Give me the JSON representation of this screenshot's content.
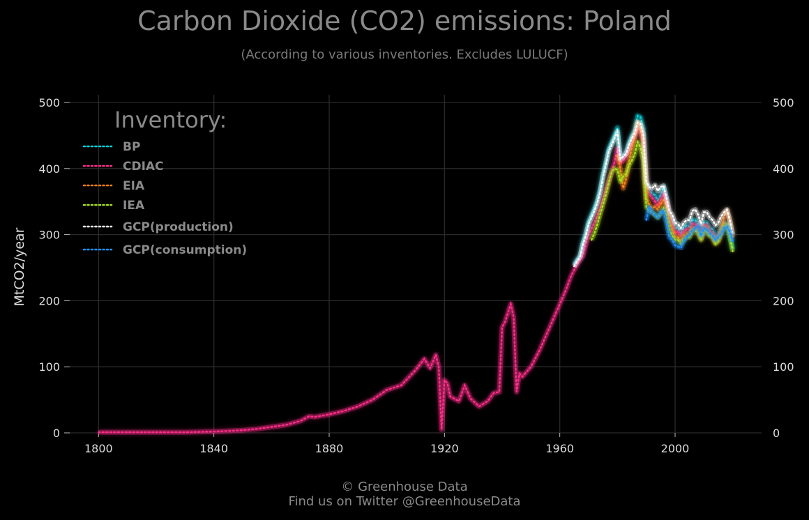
{
  "header": {
    "title": "Carbon Dioxide (CO2) emissions: Poland",
    "subtitle": "(According to various inventories. Excludes LULUCF)"
  },
  "footer": {
    "line1": "© Greenhouse Data",
    "line2": "Find us on Twitter @GreenhouseData"
  },
  "chart_data": {
    "type": "line",
    "title": "Carbon Dioxide (CO2) emissions: Poland",
    "subtitle": "(According to various inventories. Excludes LULUCF)",
    "ylabel": "MtCO2/year",
    "xlabel": "",
    "xlim": [
      1790,
      2030
    ],
    "ylim": [
      0,
      500
    ],
    "x_ticks": [
      "1800",
      "1840",
      "1880",
      "1920",
      "1960",
      "2000"
    ],
    "y_ticks": [
      "0",
      "100",
      "200",
      "300",
      "400",
      "500"
    ],
    "legend_title": "Inventory:",
    "legend_position": "top-left",
    "grid": true,
    "line_style": "dotted",
    "series": [
      {
        "name": "BP",
        "color": "#00d4e0",
        "x": [
          1965,
          1966,
          1967,
          1968,
          1969,
          1970,
          1971,
          1972,
          1973,
          1974,
          1975,
          1976,
          1977,
          1978,
          1979,
          1980,
          1981,
          1982,
          1983,
          1984,
          1985,
          1986,
          1987,
          1988,
          1989,
          1990,
          1991,
          1992,
          1993,
          1994,
          1995,
          1996,
          1997,
          1998,
          1999,
          2000,
          2001,
          2002,
          2003,
          2004,
          2005,
          2006,
          2007,
          2008,
          2009,
          2010,
          2011,
          2012,
          2013,
          2014,
          2015,
          2016,
          2017,
          2018,
          2019,
          2020
        ],
        "y": [
          255,
          262,
          268,
          288,
          302,
          320,
          330,
          340,
          352,
          368,
          392,
          410,
          430,
          440,
          450,
          462,
          418,
          420,
          424,
          440,
          450,
          458,
          480,
          478,
          460,
          380,
          368,
          362,
          360,
          352,
          360,
          372,
          352,
          330,
          322,
          310,
          310,
          300,
          310,
          314,
          312,
          322,
          322,
          314,
          300,
          318,
          318,
          310,
          308,
          296,
          300,
          312,
          318,
          316,
          300,
          278
        ]
      },
      {
        "name": "CDIAC",
        "color": "#ff2e8a",
        "x": [
          1800,
          1810,
          1820,
          1830,
          1840,
          1845,
          1850,
          1855,
          1860,
          1865,
          1870,
          1873,
          1875,
          1880,
          1885,
          1890,
          1895,
          1900,
          1905,
          1910,
          1913,
          1915,
          1917,
          1918,
          1919,
          1920,
          1921,
          1922,
          1925,
          1927,
          1929,
          1932,
          1935,
          1937,
          1939,
          1940,
          1941,
          1943,
          1944,
          1945,
          1946,
          1947,
          1950,
          1953,
          1955,
          1958,
          1960,
          1962,
          1964,
          1966,
          1968,
          1970,
          1972,
          1974,
          1976,
          1978,
          1979,
          1980,
          1981,
          1982,
          1983,
          1984,
          1985,
          1986,
          1987,
          1988,
          1989,
          1990,
          1991,
          1992,
          1993,
          1994,
          1995,
          1996,
          1997,
          1998,
          1999,
          2000,
          2001,
          2002,
          2003,
          2004,
          2005,
          2006,
          2007,
          2008,
          2009,
          2010,
          2011,
          2012,
          2013,
          2014,
          2015,
          2016,
          2017,
          2018
        ],
        "y": [
          1,
          1,
          1,
          1,
          2,
          3,
          4,
          6,
          9,
          12,
          18,
          25,
          24,
          28,
          33,
          40,
          50,
          65,
          72,
          95,
          112,
          98,
          118,
          100,
          5,
          80,
          75,
          55,
          48,
          72,
          52,
          40,
          48,
          60,
          62,
          160,
          168,
          195,
          175,
          62,
          90,
          85,
          100,
          125,
          145,
          175,
          195,
          215,
          238,
          255,
          268,
          300,
          318,
          340,
          368,
          395,
          410,
          430,
          408,
          412,
          418,
          428,
          435,
          448,
          460,
          458,
          440,
          372,
          362,
          356,
          350,
          344,
          352,
          362,
          350,
          328,
          316,
          302,
          305,
          298,
          304,
          308,
          306,
          316,
          316,
          310,
          296,
          314,
          314,
          306,
          302,
          290,
          296,
          306,
          316,
          310
        ]
      },
      {
        "name": "EIA",
        "color": "#ff7f1a",
        "x": [
          1980,
          1981,
          1982,
          1983,
          1984,
          1985,
          1986,
          1987,
          1988,
          1989,
          1990,
          1991,
          1992,
          1993,
          1994,
          1995,
          1996,
          1997,
          1998,
          1999,
          2000,
          2001,
          2002,
          2003,
          2004,
          2005,
          2006,
          2007,
          2008,
          2009,
          2010,
          2011,
          2012,
          2013,
          2014,
          2015,
          2016,
          2017,
          2018,
          2019,
          2020
        ],
        "y": [
          420,
          400,
          370,
          384,
          410,
          432,
          448,
          470,
          462,
          440,
          356,
          346,
          340,
          342,
          338,
          346,
          352,
          344,
          320,
          308,
          296,
          296,
          290,
          298,
          302,
          300,
          310,
          310,
          306,
          294,
          312,
          310,
          300,
          298,
          288,
          292,
          306,
          328,
          336,
          320,
          296
        ]
      },
      {
        "name": "IEA",
        "color": "#a8e020",
        "x": [
          1971,
          1972,
          1973,
          1974,
          1975,
          1976,
          1977,
          1978,
          1979,
          1980,
          1981,
          1982,
          1983,
          1984,
          1985,
          1986,
          1987,
          1988,
          1989,
          1990,
          1991,
          1992,
          1993,
          1994,
          1995,
          1996,
          1997,
          1998,
          1999,
          2000,
          2001,
          2002,
          2003,
          2004,
          2005,
          2006,
          2007,
          2008,
          2009,
          2010,
          2011,
          2012,
          2013,
          2014,
          2015,
          2016,
          2017,
          2018,
          2019,
          2020
        ],
        "y": [
          292,
          302,
          315,
          330,
          345,
          360,
          378,
          395,
          400,
          398,
          380,
          388,
          392,
          405,
          412,
          422,
          440,
          432,
          412,
          342,
          336,
          334,
          330,
          326,
          332,
          340,
          330,
          308,
          298,
          292,
          292,
          286,
          292,
          296,
          296,
          306,
          306,
          302,
          292,
          306,
          304,
          298,
          296,
          286,
          290,
          302,
          314,
          314,
          296,
          274
        ]
      },
      {
        "name": "GCP(production)",
        "color": "#ffffff",
        "x": [
          1965,
          1966,
          1967,
          1968,
          1969,
          1970,
          1971,
          1972,
          1973,
          1974,
          1975,
          1976,
          1977,
          1978,
          1979,
          1980,
          1981,
          1982,
          1983,
          1984,
          1985,
          1986,
          1987,
          1988,
          1989,
          1990,
          1991,
          1992,
          1993,
          1994,
          1995,
          1996,
          1997,
          1998,
          1999,
          2000,
          2001,
          2002,
          2003,
          2004,
          2005,
          2006,
          2007,
          2008,
          2009,
          2010,
          2011,
          2012,
          2013,
          2014,
          2015,
          2016,
          2017,
          2018,
          2019,
          2020
        ],
        "y": [
          252,
          260,
          266,
          285,
          298,
          316,
          326,
          336,
          348,
          364,
          388,
          406,
          426,
          436,
          446,
          456,
          414,
          418,
          422,
          436,
          446,
          454,
          470,
          468,
          452,
          380,
          372,
          370,
          375,
          366,
          372,
          374,
          356,
          336,
          330,
          318,
          316,
          310,
          318,
          322,
          322,
          336,
          338,
          330,
          316,
          334,
          334,
          326,
          322,
          314,
          318,
          328,
          334,
          338,
          322,
          300
        ]
      },
      {
        "name": "GCP(consumption)",
        "color": "#1e90ff",
        "x": [
          1990,
          1991,
          1992,
          1993,
          1994,
          1995,
          1996,
          1997,
          1998,
          1999,
          2000,
          2001,
          2002,
          2003,
          2004,
          2005,
          2006,
          2007,
          2008,
          2009,
          2010,
          2011,
          2012,
          2013,
          2014,
          2015,
          2016,
          2017,
          2018,
          2019,
          2020
        ],
        "y": [
          322,
          342,
          334,
          330,
          326,
          334,
          336,
          318,
          296,
          292,
          284,
          282,
          280,
          290,
          296,
          300,
          306,
          310,
          312,
          298,
          310,
          308,
          302,
          298,
          292,
          296,
          302,
          310,
          312,
          304,
          290
        ]
      }
    ]
  }
}
